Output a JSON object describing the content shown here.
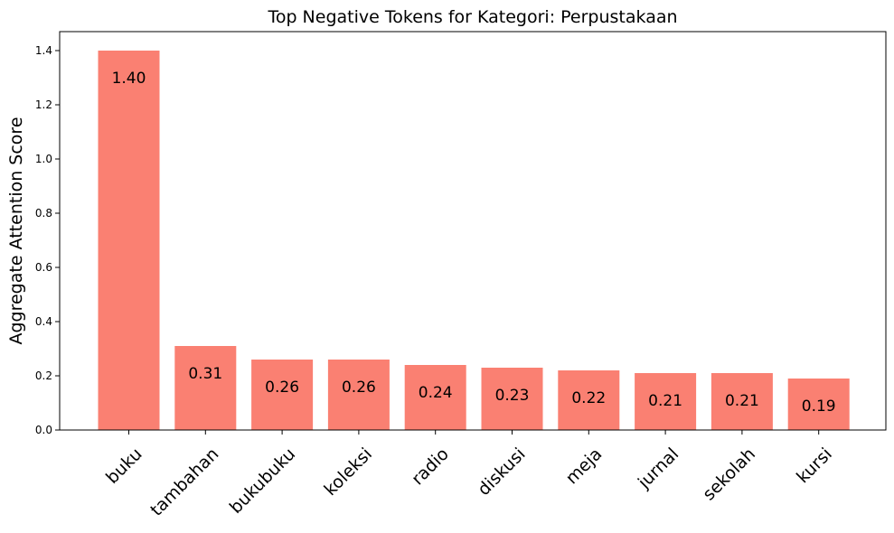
{
  "chart_data": {
    "type": "bar",
    "title": "Top Negative Tokens for Kategori: Perpustakaan",
    "xlabel": "",
    "ylabel": "Aggregate Attention Score",
    "categories": [
      "buku",
      "tambahan",
      "bukubuku",
      "koleksi",
      "radio",
      "diskusi",
      "meja",
      "jurnal",
      "sekolah",
      "kursi"
    ],
    "values": [
      1.4,
      0.31,
      0.26,
      0.26,
      0.24,
      0.23,
      0.22,
      0.21,
      0.21,
      0.19
    ],
    "value_labels": [
      "1.40",
      "0.31",
      "0.26",
      "0.26",
      "0.24",
      "0.23",
      "0.22",
      "0.21",
      "0.21",
      "0.19"
    ],
    "yticks": [
      0.0,
      0.2,
      0.4,
      0.6,
      0.8,
      1.0,
      1.2,
      1.4
    ],
    "ytick_labels": [
      "0.0",
      "0.2",
      "0.4",
      "0.6",
      "0.8",
      "1.0",
      "1.2",
      "1.4"
    ],
    "ylim": [
      0,
      1.47
    ],
    "grid": false,
    "legend": false,
    "bar_color": "#fa8072",
    "axis_color": "#000000"
  }
}
